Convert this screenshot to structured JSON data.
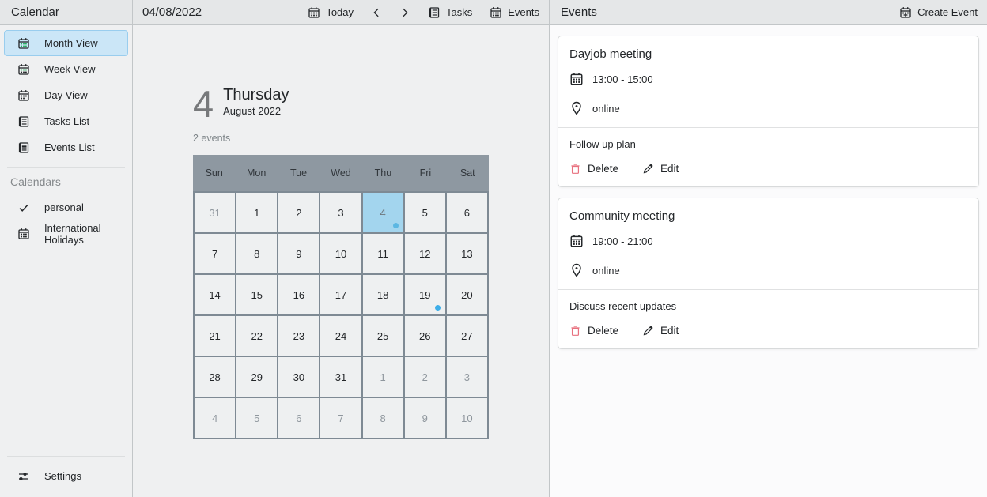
{
  "colors": {
    "accent_blue": "#3daee9",
    "selected_cell_bg": "#a3d5ee",
    "selected_item_bg": "#cbe6f7",
    "grid_header_bg": "#8e98a1",
    "header_bar_bg": "#e5e7e8",
    "delete_red": "#e8707e",
    "calendar_icon_green": "#27ae60"
  },
  "sidebar": {
    "title": "Calendar",
    "views": [
      {
        "label": "Month View",
        "icon": "month-view-icon",
        "selected": true
      },
      {
        "label": "Week View",
        "icon": "week-view-icon",
        "selected": false
      },
      {
        "label": "Day View",
        "icon": "day-view-icon",
        "selected": false
      },
      {
        "label": "Tasks List",
        "icon": "tasks-list-icon",
        "selected": false
      },
      {
        "label": "Events List",
        "icon": "events-list-icon",
        "selected": false
      }
    ],
    "calendars_label": "Calendars",
    "calendars": [
      {
        "label": "personal",
        "icon": "checkmark-icon"
      },
      {
        "label": "International Holidays",
        "icon": "calendar-icon"
      }
    ],
    "settings_label": "Settings"
  },
  "toolbar": {
    "date": "04/08/2022",
    "today_label": "Today",
    "tasks_label": "Tasks",
    "events_label": "Events"
  },
  "main": {
    "day_number": "4",
    "day_name": "Thursday",
    "month_year": "August 2022",
    "events_count": "2 events",
    "weekdays": [
      "Sun",
      "Mon",
      "Tue",
      "Wed",
      "Thu",
      "Fri",
      "Sat"
    ],
    "grid": [
      [
        {
          "d": "31",
          "muted": true
        },
        {
          "d": "1"
        },
        {
          "d": "2"
        },
        {
          "d": "3"
        },
        {
          "d": "4",
          "selected": true,
          "dot": true
        },
        {
          "d": "5"
        },
        {
          "d": "6"
        }
      ],
      [
        {
          "d": "7"
        },
        {
          "d": "8"
        },
        {
          "d": "9"
        },
        {
          "d": "10"
        },
        {
          "d": "11"
        },
        {
          "d": "12"
        },
        {
          "d": "13"
        }
      ],
      [
        {
          "d": "14"
        },
        {
          "d": "15"
        },
        {
          "d": "16"
        },
        {
          "d": "17"
        },
        {
          "d": "18"
        },
        {
          "d": "19",
          "dot": true
        },
        {
          "d": "20"
        }
      ],
      [
        {
          "d": "21"
        },
        {
          "d": "22"
        },
        {
          "d": "23"
        },
        {
          "d": "24"
        },
        {
          "d": "25"
        },
        {
          "d": "26"
        },
        {
          "d": "27"
        }
      ],
      [
        {
          "d": "28"
        },
        {
          "d": "29"
        },
        {
          "d": "30"
        },
        {
          "d": "31"
        },
        {
          "d": "1",
          "muted": true
        },
        {
          "d": "2",
          "muted": true
        },
        {
          "d": "3",
          "muted": true
        }
      ],
      [
        {
          "d": "4",
          "muted": true
        },
        {
          "d": "5",
          "muted": true
        },
        {
          "d": "6",
          "muted": true
        },
        {
          "d": "7",
          "muted": true
        },
        {
          "d": "8",
          "muted": true
        },
        {
          "d": "9",
          "muted": true
        },
        {
          "d": "10",
          "muted": true
        }
      ]
    ]
  },
  "events_panel": {
    "title": "Events",
    "create_label": "Create Event",
    "cards": [
      {
        "title": "Dayjob meeting",
        "time": "13:00 - 15:00",
        "location": "online",
        "description": "Follow up plan",
        "delete_label": "Delete",
        "edit_label": "Edit"
      },
      {
        "title": "Community meeting",
        "time": "19:00 - 21:00",
        "location": "online",
        "description": "Discuss recent updates",
        "delete_label": "Delete",
        "edit_label": "Edit"
      }
    ]
  }
}
